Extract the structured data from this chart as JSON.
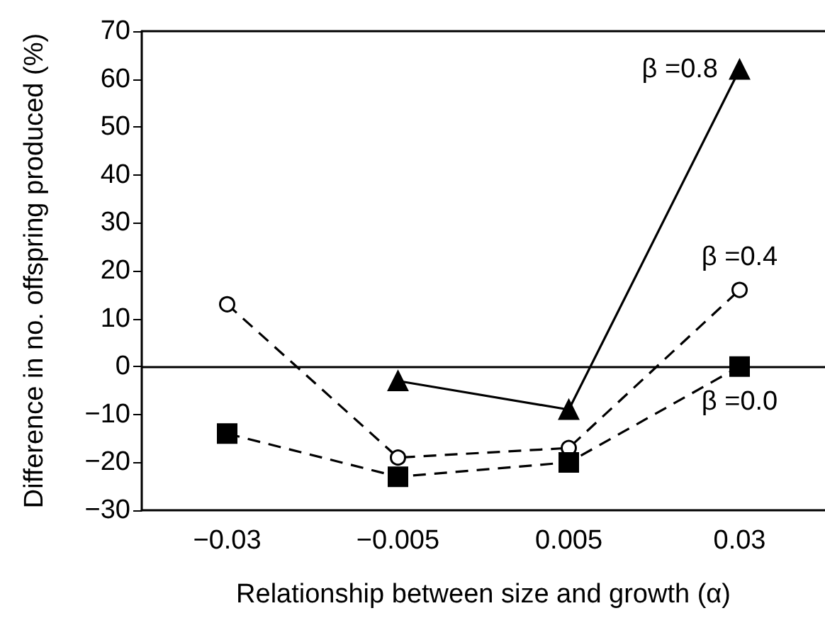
{
  "chart_data": {
    "type": "line",
    "xlabel": "Relationship between size and growth (α)",
    "ylabel": "Difference in no. offspring produced (%)",
    "categories": [
      "−0.03",
      "−0.005",
      "0.005",
      "0.03"
    ],
    "series": [
      {
        "name": "β =0.8",
        "color": "#000000",
        "values": [
          null,
          -3,
          -9,
          62
        ],
        "marker": "triangle",
        "line_style": "solid"
      },
      {
        "name": "β =0.4",
        "color": "#000000",
        "values": [
          13,
          -19,
          -17,
          16
        ],
        "marker": "circle",
        "line_style": "dashed"
      },
      {
        "name": "β =0.0",
        "color": "#000000",
        "values": [
          -14,
          -23,
          -20,
          0
        ],
        "marker": "square",
        "line_style": "dashed"
      }
    ],
    "ylim": [
      -30,
      70
    ],
    "yticks": [
      -30,
      -20,
      -10,
      0,
      10,
      20,
      30,
      40,
      50,
      60,
      70
    ],
    "ref_lines": [
      {
        "axis": "y",
        "value": 0,
        "color": "#000000",
        "line_style": "solid"
      }
    ],
    "grid": false,
    "legend": false
  }
}
